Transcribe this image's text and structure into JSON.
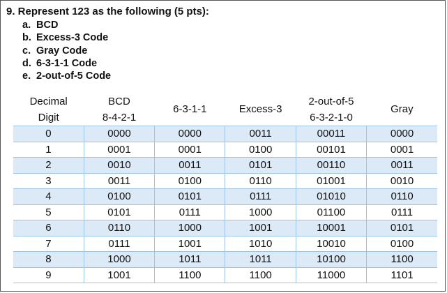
{
  "question": "9. Represent 123 as the following (5 pts):",
  "parts": [
    {
      "letter": "a.",
      "text": "BCD"
    },
    {
      "letter": "b.",
      "text": "Excess-3 Code"
    },
    {
      "letter": "c.",
      "text": "Gray Code"
    },
    {
      "letter": "d.",
      "text": "6-3-1-1 Code"
    },
    {
      "letter": "e.",
      "text": "2-out-of-5 Code"
    }
  ],
  "table": {
    "headers": [
      [
        "Decimal",
        "Digit"
      ],
      [
        "BCD",
        "8-4-2-1"
      ],
      [
        "6-3-1-1"
      ],
      [
        "Excess-3"
      ],
      [
        "2-out-of-5",
        "6-3-2-1-0"
      ],
      [
        "Gray"
      ]
    ],
    "rows": [
      [
        "0",
        "0000",
        "0000",
        "0011",
        "00011",
        "0000"
      ],
      [
        "1",
        "0001",
        "0001",
        "0100",
        "00101",
        "0001"
      ],
      [
        "2",
        "0010",
        "0011",
        "0101",
        "00110",
        "0011"
      ],
      [
        "3",
        "0011",
        "0100",
        "0110",
        "01001",
        "0010"
      ],
      [
        "4",
        "0100",
        "0101",
        "0111",
        "01010",
        "0110"
      ],
      [
        "5",
        "0101",
        "0111",
        "1000",
        "01100",
        "0111"
      ],
      [
        "6",
        "0110",
        "1000",
        "1001",
        "10001",
        "0101"
      ],
      [
        "7",
        "0111",
        "1001",
        "1010",
        "10010",
        "0100"
      ],
      [
        "8",
        "1000",
        "1011",
        "1011",
        "10100",
        "1100"
      ],
      [
        "9",
        "1001",
        "1100",
        "1100",
        "11000",
        "1101"
      ]
    ]
  },
  "colors": {
    "band": "#dce9f6",
    "rule": "#9dc3e6"
  }
}
